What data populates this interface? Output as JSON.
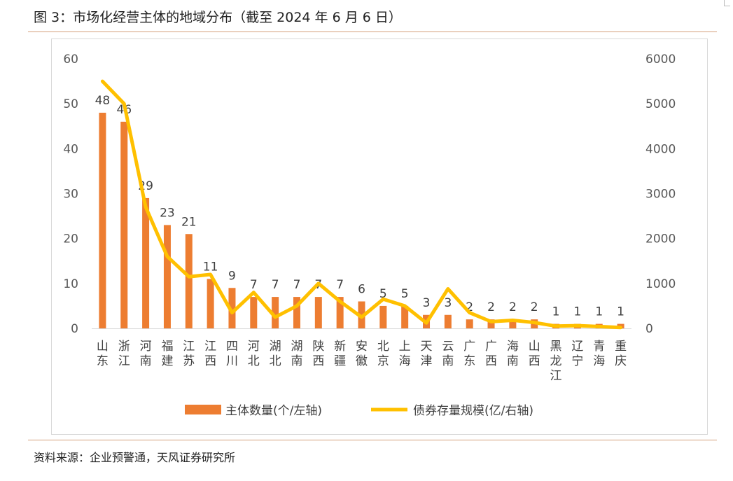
{
  "figure": {
    "title": "图 3：市场化经营主体的地域分布（截至 2024 年 6 月 6 日）",
    "source": "资料来源：企业预警通，天风证券研究所"
  },
  "colors": {
    "bar": "#ED7D31",
    "line": "#FFC000",
    "rule": "#D4A07A",
    "text": "#595959"
  },
  "chart_data": {
    "type": "bar",
    "title": "",
    "categories": [
      "山东",
      "浙江",
      "河南",
      "福建",
      "江苏",
      "江西",
      "四川",
      "河北",
      "湖北",
      "湖南",
      "陕西",
      "新疆",
      "安徽",
      "北京",
      "上海",
      "天津",
      "云南",
      "广东",
      "广西",
      "海南",
      "山西",
      "黑龙江",
      "辽宁",
      "青海",
      "重庆"
    ],
    "series": [
      {
        "name": "主体数量(个/左轴)",
        "type": "bar",
        "axis": "left",
        "values": [
          48,
          46,
          29,
          23,
          21,
          11,
          9,
          7,
          7,
          7,
          7,
          7,
          6,
          5,
          5,
          3,
          3,
          2,
          2,
          2,
          2,
          1,
          1,
          1,
          1
        ],
        "data_labels": true
      },
      {
        "name": "债券存量规模(亿/右轴)",
        "type": "line",
        "axis": "right",
        "values": [
          5500,
          5000,
          2700,
          1600,
          1150,
          1200,
          350,
          800,
          250,
          500,
          1000,
          600,
          250,
          650,
          500,
          120,
          880,
          350,
          150,
          180,
          130,
          50,
          60,
          40,
          20
        ],
        "data_labels": false
      }
    ],
    "y_left": {
      "min": 0,
      "max": 60,
      "ticks": [
        "0",
        "10",
        "20",
        "30",
        "40",
        "50",
        "60"
      ]
    },
    "y_right": {
      "min": 0,
      "max": 6000,
      "ticks": [
        "0",
        "1000",
        "2000",
        "3000",
        "4000",
        "5000",
        "6000"
      ]
    },
    "grid": false,
    "legend_position": "bottom"
  }
}
